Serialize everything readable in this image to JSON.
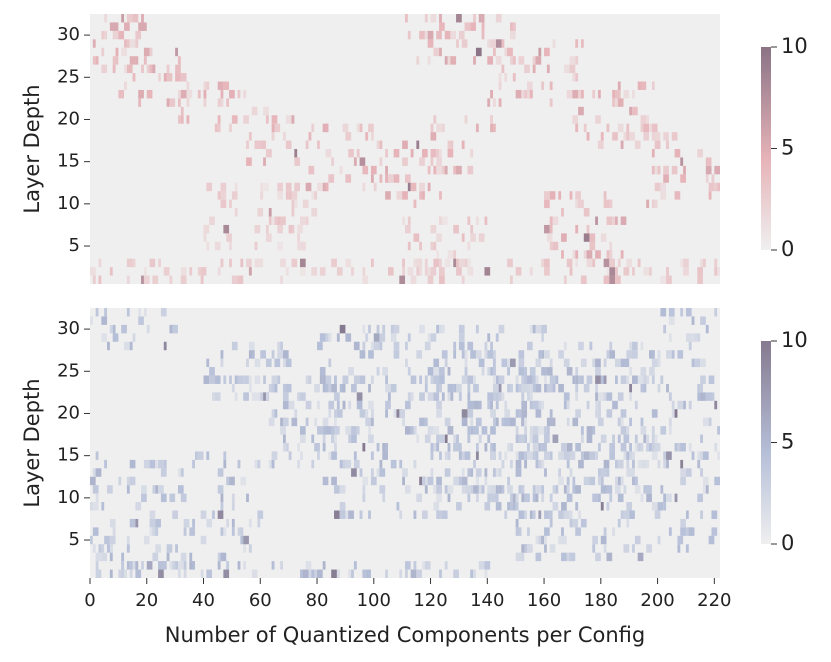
{
  "chart_data": [
    {
      "type": "heatmap",
      "ylabel": "Layer Depth",
      "xlabel": "",
      "xlim": [
        0,
        222
      ],
      "ylim": [
        0.5,
        32.5
      ],
      "x_ticks": [
        0,
        20,
        40,
        60,
        80,
        100,
        120,
        140,
        160,
        180,
        200,
        220
      ],
      "x_tick_labels": [
        "0",
        "20",
        "40",
        "60",
        "80",
        "100",
        "120",
        "140",
        "160",
        "180",
        "200",
        "220"
      ],
      "y_ticks": [
        5,
        10,
        15,
        20,
        25,
        30
      ],
      "y_tick_labels": [
        "5",
        "10",
        "15",
        "20",
        "25",
        "30"
      ],
      "value_range": [
        0,
        10
      ],
      "colorbar_ticks": [
        0,
        5,
        10
      ],
      "colorbar_tick_labels": [
        "0",
        "5",
        "10"
      ],
      "colors": {
        "low": "#efefef",
        "mid": "#e6b3b8",
        "high": "#8a7385"
      },
      "grid": false,
      "cells_description_note": "",
      "bands": [
        {
          "x": [
            0,
            20
          ],
          "y": [
            26,
            32
          ],
          "value": 3
        },
        {
          "x": [
            10,
            35
          ],
          "y": [
            22,
            28
          ],
          "value": 3
        },
        {
          "x": [
            30,
            55
          ],
          "y": [
            19,
            25
          ],
          "value": 3
        },
        {
          "x": [
            55,
            75
          ],
          "y": [
            15,
            21
          ],
          "value": 3
        },
        {
          "x": [
            75,
            100
          ],
          "y": [
            12,
            19
          ],
          "value": 3
        },
        {
          "x": [
            100,
            125
          ],
          "y": [
            10,
            17
          ],
          "value": 3
        },
        {
          "x": [
            120,
            145
          ],
          "y": [
            14,
            20
          ],
          "value": 3
        },
        {
          "x": [
            40,
            80
          ],
          "y": [
            5,
            12
          ],
          "value": 2
        },
        {
          "x": [
            110,
            140
          ],
          "y": [
            2,
            8
          ],
          "value": 2
        },
        {
          "x": [
            110,
            150
          ],
          "y": [
            27,
            32
          ],
          "value": 3
        },
        {
          "x": [
            140,
            175
          ],
          "y": [
            22,
            29
          ],
          "value": 3
        },
        {
          "x": [
            170,
            200
          ],
          "y": [
            17,
            24
          ],
          "value": 3
        },
        {
          "x": [
            195,
            222
          ],
          "y": [
            10,
            18
          ],
          "value": 3
        },
        {
          "x": [
            160,
            190
          ],
          "y": [
            4,
            11
          ],
          "value": 3
        },
        {
          "x": [
            0,
            222
          ],
          "y": [
            1,
            3
          ],
          "value": 2
        }
      ]
    },
    {
      "type": "heatmap",
      "ylabel": "Layer Depth",
      "xlabel": "Number of Quantized Components per Config",
      "xlim": [
        0,
        222
      ],
      "ylim": [
        0.5,
        32.5
      ],
      "x_ticks": [
        0,
        20,
        40,
        60,
        80,
        100,
        120,
        140,
        160,
        180,
        200,
        220
      ],
      "x_tick_labels": [
        "0",
        "20",
        "40",
        "60",
        "80",
        "100",
        "120",
        "140",
        "160",
        "180",
        "200",
        "220"
      ],
      "y_ticks": [
        5,
        10,
        15,
        20,
        25,
        30
      ],
      "y_tick_labels": [
        "5",
        "10",
        "15",
        "20",
        "25",
        "30"
      ],
      "value_range": [
        0,
        10
      ],
      "colorbar_ticks": [
        0,
        5,
        10
      ],
      "colorbar_tick_labels": [
        "0",
        "5",
        "10"
      ],
      "colors": {
        "low": "#efefef",
        "mid": "#b5bfd8",
        "high": "#857a8f"
      },
      "grid": false,
      "bands": [
        {
          "x": [
            0,
            30
          ],
          "y": [
            28,
            32
          ],
          "value": 3
        },
        {
          "x": [
            40,
            70
          ],
          "y": [
            22,
            28
          ],
          "value": 3
        },
        {
          "x": [
            60,
            100
          ],
          "y": [
            14,
            24
          ],
          "value": 3
        },
        {
          "x": [
            0,
            60
          ],
          "y": [
            1,
            15
          ],
          "value": 3
        },
        {
          "x": [
            80,
            160
          ],
          "y": [
            8,
            30
          ],
          "value": 3
        },
        {
          "x": [
            120,
            200
          ],
          "y": [
            10,
            28
          ],
          "value": 3
        },
        {
          "x": [
            150,
            222
          ],
          "y": [
            3,
            24
          ],
          "value": 3
        },
        {
          "x": [
            200,
            222
          ],
          "y": [
            26,
            32
          ],
          "value": 3
        },
        {
          "x": [
            0,
            140
          ],
          "y": [
            1,
            2
          ],
          "value": 3
        }
      ]
    }
  ]
}
